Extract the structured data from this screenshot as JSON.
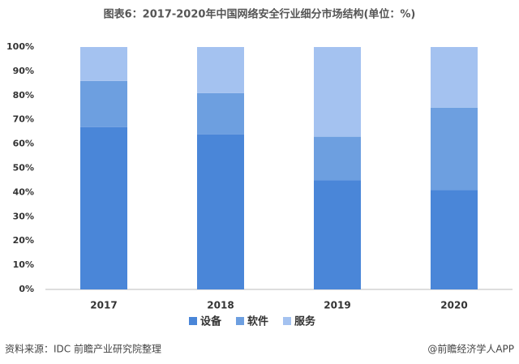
{
  "chart_data": {
    "type": "bar",
    "stacked": true,
    "title": "图表6：2017-2020年中国网络安全行业细分市场结构(单位：%)",
    "categories": [
      "2017",
      "2018",
      "2019",
      "2020"
    ],
    "series": [
      {
        "name": "设备",
        "color": "#4a86d8",
        "values": [
          67,
          64,
          45,
          41
        ]
      },
      {
        "name": "软件",
        "color": "#6d9fe0",
        "values": [
          19,
          17,
          18,
          34
        ]
      },
      {
        "name": "服务",
        "color": "#a4c2f0",
        "values": [
          14,
          19,
          37,
          25
        ]
      }
    ],
    "ylim": [
      0,
      100
    ],
    "yticks": [
      {
        "value": 0,
        "label": "0%"
      },
      {
        "value": 10,
        "label": "10%"
      },
      {
        "value": 20,
        "label": "20%"
      },
      {
        "value": 30,
        "label": "30%"
      },
      {
        "value": 40,
        "label": "40%"
      },
      {
        "value": 50,
        "label": "50%"
      },
      {
        "value": 60,
        "label": "60%"
      },
      {
        "value": 70,
        "label": "70%"
      },
      {
        "value": 80,
        "label": "80%"
      },
      {
        "value": 90,
        "label": "90%"
      },
      {
        "value": 100,
        "label": "100%"
      }
    ],
    "grid": false,
    "legend": "bottom",
    "source": "资料来源：IDC 前瞻产业研究院整理",
    "credit": "@前瞻经济学人APP"
  }
}
